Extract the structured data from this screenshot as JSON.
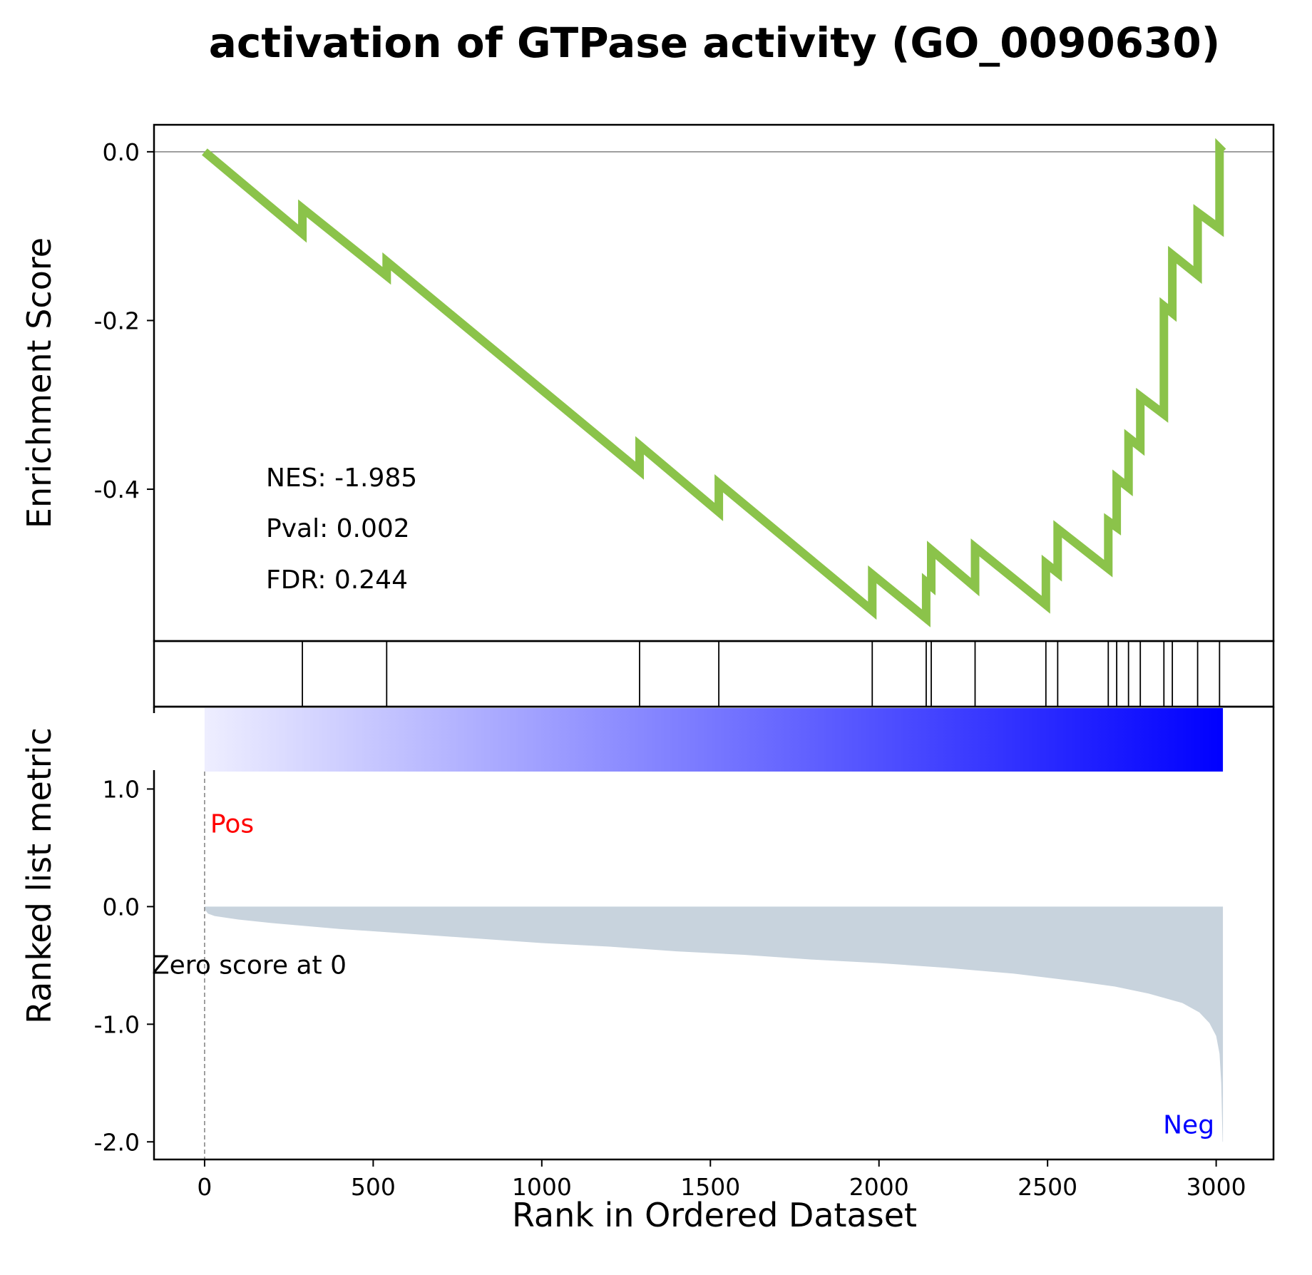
{
  "chart_data": {
    "type": "line",
    "title": "activation of GTPase activity (GO_0090630)",
    "xlabel": "Rank in Ordered Dataset",
    "xlim": [
      -150,
      3170
    ],
    "x_ticks": [
      0,
      500,
      1000,
      1500,
      2000,
      2500,
      3000
    ],
    "x_tick_labels": [
      "0",
      "500",
      "1000",
      "1500",
      "2000",
      "2500",
      "3000"
    ],
    "enrichment": {
      "ylabel": "Enrichment Score",
      "ylim": [
        -0.58,
        0.032
      ],
      "y_ticks": [
        0.0,
        -0.2,
        -0.4
      ],
      "y_tick_labels": [
        "0.0",
        "-0.2",
        "-0.4"
      ],
      "line_color": "#8bc34a",
      "points": [
        [
          0,
          0.0
        ],
        [
          290,
          -0.097
        ],
        [
          290,
          -0.067
        ],
        [
          540,
          -0.147
        ],
        [
          540,
          -0.13
        ],
        [
          1290,
          -0.378
        ],
        [
          1290,
          -0.348
        ],
        [
          1525,
          -0.427
        ],
        [
          1525,
          -0.393
        ],
        [
          1980,
          -0.544
        ],
        [
          1980,
          -0.501
        ],
        [
          2140,
          -0.553
        ],
        [
          2140,
          -0.51
        ],
        [
          2155,
          -0.515
        ],
        [
          2155,
          -0.472
        ],
        [
          2285,
          -0.516
        ],
        [
          2285,
          -0.469
        ],
        [
          2495,
          -0.537
        ],
        [
          2495,
          -0.488
        ],
        [
          2530,
          -0.499
        ],
        [
          2530,
          -0.447
        ],
        [
          2680,
          -0.494
        ],
        [
          2680,
          -0.438
        ],
        [
          2705,
          -0.445
        ],
        [
          2705,
          -0.387
        ],
        [
          2740,
          -0.398
        ],
        [
          2740,
          -0.339
        ],
        [
          2775,
          -0.35
        ],
        [
          2775,
          -0.29
        ],
        [
          2845,
          -0.311
        ],
        [
          2845,
          -0.183
        ],
        [
          2870,
          -0.191
        ],
        [
          2870,
          -0.122
        ],
        [
          2945,
          -0.146
        ],
        [
          2945,
          -0.072
        ],
        [
          3010,
          -0.091
        ],
        [
          3010,
          0.004
        ],
        [
          3020,
          0.0
        ]
      ]
    },
    "stats": [
      "NES: -1.985",
      "Pval: 0.002",
      "FDR: 0.244"
    ],
    "hits": [
      290,
      540,
      1290,
      1525,
      1980,
      2140,
      2155,
      2285,
      2495,
      2530,
      2680,
      2705,
      2740,
      2775,
      2845,
      2870,
      2945,
      3010
    ],
    "ranked_metric": {
      "ylabel": "Ranked list metric",
      "ylim": [
        -2.15,
        1.7
      ],
      "y_ticks": [
        1.0,
        0.0,
        -1.0,
        -2.0
      ],
      "y_tick_labels": [
        "1.0",
        "0.0",
        "-1.0",
        "-2.0"
      ],
      "fill_color": "#c8d3dd",
      "curve": [
        [
          0,
          -0.02
        ],
        [
          10,
          -0.06
        ],
        [
          30,
          -0.08
        ],
        [
          100,
          -0.11
        ],
        [
          200,
          -0.14
        ],
        [
          400,
          -0.19
        ],
        [
          600,
          -0.23
        ],
        [
          800,
          -0.27
        ],
        [
          1000,
          -0.31
        ],
        [
          1200,
          -0.34
        ],
        [
          1400,
          -0.38
        ],
        [
          1600,
          -0.41
        ],
        [
          1800,
          -0.45
        ],
        [
          2000,
          -0.48
        ],
        [
          2200,
          -0.52
        ],
        [
          2400,
          -0.57
        ],
        [
          2600,
          -0.64
        ],
        [
          2700,
          -0.68
        ],
        [
          2800,
          -0.74
        ],
        [
          2850,
          -0.78
        ],
        [
          2900,
          -0.82
        ],
        [
          2950,
          -0.9
        ],
        [
          2980,
          -0.99
        ],
        [
          3000,
          -1.1
        ],
        [
          3010,
          -1.25
        ],
        [
          3015,
          -1.5
        ],
        [
          3019,
          -2.0
        ],
        [
          3020,
          -2.0
        ]
      ],
      "gradient_colors": [
        "#eeeeff",
        "#0000ff"
      ],
      "zero_score_label": "Zero score at 0",
      "zero_rank": 0,
      "pos_label": "Pos",
      "pos_color": "#ff0000",
      "neg_label": "Neg",
      "neg_color": "#0000ff"
    },
    "max_rank": 3020
  }
}
